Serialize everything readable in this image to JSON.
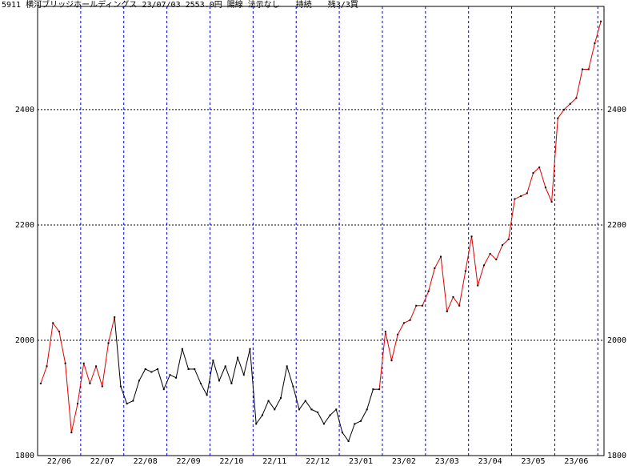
{
  "chart_data": {
    "type": "line",
    "title": "5911 横河ブリッジホールディングス 23/07/03 2553.0円 陽線 法示なし　　持続　　残3/3買",
    "categories": [
      null,
      null,
      null,
      "22/06",
      null,
      null,
      null,
      null,
      null,
      null,
      "22/07",
      null,
      null,
      null,
      null,
      null,
      null,
      "22/08",
      null,
      null,
      null,
      null,
      null,
      null,
      "22/09",
      null,
      null,
      null,
      null,
      null,
      null,
      "22/10",
      null,
      null,
      null,
      null,
      null,
      null,
      "22/11",
      null,
      null,
      null,
      null,
      null,
      null,
      "22/12",
      null,
      null,
      null,
      null,
      null,
      null,
      "23/01",
      null,
      null,
      null,
      null,
      null,
      null,
      "23/02",
      null,
      null,
      null,
      null,
      null,
      null,
      "23/03",
      null,
      null,
      null,
      null,
      null,
      null,
      "23/04",
      null,
      null,
      null,
      null,
      null,
      null,
      "23/05",
      null,
      null,
      null,
      null,
      null,
      null,
      "23/06",
      null,
      null,
      null,
      null
    ],
    "values": [
      1925,
      1955,
      2030,
      2015,
      1960,
      1840,
      1890,
      1960,
      1925,
      1955,
      1920,
      1995,
      2040,
      1920,
      1890,
      1895,
      1930,
      1950,
      1945,
      1950,
      1915,
      1940,
      1935,
      1985,
      1950,
      1950,
      1925,
      1905,
      1965,
      1930,
      1955,
      1925,
      1970,
      1940,
      1985,
      1855,
      1870,
      1895,
      1880,
      1900,
      1955,
      1920,
      1880,
      1895,
      1880,
      1875,
      1855,
      1870,
      1880,
      1840,
      1825,
      1855,
      1860,
      1880,
      1915,
      1915,
      2015,
      1965,
      2010,
      2030,
      2035,
      2060,
      2060,
      2085,
      2125,
      2145,
      2050,
      2075,
      2060,
      2120,
      2180,
      2095,
      2130,
      2150,
      2140,
      2165,
      2175,
      2245,
      2250,
      2255,
      2290,
      2300,
      2265,
      2240,
      2385,
      2400,
      2410,
      2420,
      2470,
      2470,
      2515,
      2553
    ],
    "colors": [
      "#e00000",
      "#e00000",
      "#e00000",
      "#e00000",
      "#e00000",
      "#e00000",
      "#e00000",
      "#e00000",
      "#e00000",
      "#e00000",
      "#e00000",
      "#e00000",
      "#e00000",
      "#000000",
      "#000000",
      "#000000",
      "#000000",
      "#000000",
      "#000000",
      "#000000",
      "#000000",
      "#000000",
      "#000000",
      "#000000",
      "#000000",
      "#000000",
      "#000000",
      "#000000",
      "#000000",
      "#000000",
      "#000000",
      "#000000",
      "#000000",
      "#000000",
      "#000000",
      "#000000",
      "#000000",
      "#000000",
      "#000000",
      "#000000",
      "#000000",
      "#000000",
      "#000000",
      "#000000",
      "#000000",
      "#000000",
      "#000000",
      "#000000",
      "#000000",
      "#000000",
      "#000000",
      "#000000",
      "#000000",
      "#000000",
      "#000000",
      "#000000",
      "#e00000",
      "#e00000",
      "#e00000",
      "#e00000",
      "#e00000",
      "#e00000",
      "#e00000",
      "#e00000",
      "#e00000",
      "#e00000",
      "#e00000",
      "#e00000",
      "#e00000",
      "#e00000",
      "#e00000",
      "#e00000",
      "#e00000",
      "#e00000",
      "#e00000",
      "#e00000",
      "#e00000",
      "#e00000",
      "#e00000",
      "#e00000",
      "#e00000",
      "#e00000",
      "#e00000",
      "#e00000",
      "#e00000",
      "#e00000",
      "#e00000",
      "#e00000",
      "#e00000",
      "#e00000",
      "#e00000",
      "#e00000"
    ],
    "ylim": [
      1800,
      2579
    ],
    "yticks": [
      1800,
      2000,
      2200,
      2400
    ],
    "grid": true,
    "grid_color": "#0000c0"
  }
}
